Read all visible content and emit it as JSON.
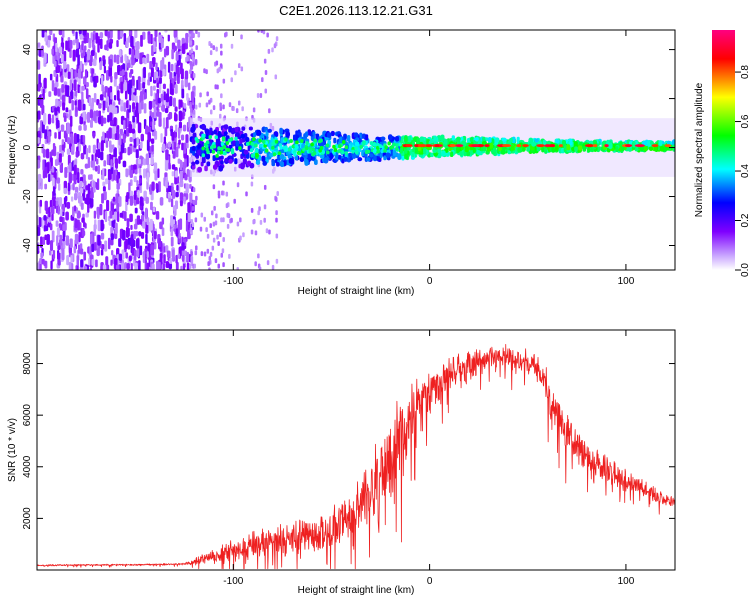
{
  "figure_title": "C2E1.2026.113.12.21.G31",
  "chart_data": [
    {
      "type": "heatmap",
      "title": "C2E1.2026.113.12.21.G31",
      "xlabel": "Height of straight line (km)",
      "ylabel": "Frequency (Hz)",
      "xlim": [
        -200,
        125
      ],
      "ylim": [
        -50,
        48
      ],
      "xticks": [
        -100,
        0,
        100
      ],
      "yticks": [
        -40,
        -20,
        0,
        20,
        40
      ],
      "xtick_labels": [
        "-100",
        "0",
        "100"
      ],
      "ytick_labels": [
        "-40",
        "-20",
        "0",
        "20",
        "40"
      ],
      "colorbar": {
        "label": "Normalized spectral amplitude",
        "range": [
          0,
          0.97
        ],
        "ticks": [
          0.0,
          0.2,
          0.4,
          0.6,
          0.8
        ],
        "tick_labels": [
          "0.0",
          "0.2",
          "0.4",
          "0.6",
          "0.8"
        ],
        "colors": [
          "#ffffff",
          "#7f00ff",
          "#0000ff",
          "#00ffff",
          "#00ff00",
          "#ffff00",
          "#ff0000",
          "#ff00ff"
        ]
      },
      "description_regions": [
        {
          "x_range": [
            -200,
            -122
          ],
          "f_range": [
            -50,
            48
          ],
          "amplitude": 0.1
        },
        {
          "x_range": [
            -122,
            -20
          ],
          "f_range": [
            -8,
            8
          ],
          "amplitude": 0.35
        },
        {
          "x_range": [
            -20,
            125
          ],
          "f_range": [
            -2,
            3
          ],
          "amplitude": 0.5
        }
      ]
    },
    {
      "type": "line",
      "title": "",
      "xlabel": "Height of straight line (km)",
      "ylabel": "SNR (10 * v/v)",
      "xlim": [
        -200,
        125
      ],
      "ylim": [
        0,
        9300
      ],
      "xticks": [
        -100,
        0,
        100
      ],
      "yticks": [
        2000,
        4000,
        6000,
        8000
      ],
      "xtick_labels": [
        "-100",
        "0",
        "100"
      ],
      "ytick_labels": [
        "2000",
        "4000",
        "6000",
        "8000"
      ],
      "color": "#ee2020",
      "series": [
        {
          "name": "SNR",
          "x": [
            -200,
            -180,
            -160,
            -140,
            -125,
            -115,
            -105,
            -100,
            -90,
            -80,
            -70,
            -60,
            -50,
            -40,
            -35,
            -30,
            -25,
            -20,
            -15,
            -10,
            -5,
            0,
            5,
            10,
            15,
            20,
            25,
            30,
            35,
            40,
            45,
            50,
            55,
            60,
            65,
            70,
            75,
            80,
            85,
            90,
            95,
            100,
            105,
            110,
            115,
            120,
            125
          ],
          "y": [
            180,
            190,
            200,
            210,
            230,
            420,
            650,
            800,
            950,
            1050,
            1200,
            1350,
            1600,
            2100,
            2600,
            3100,
            3700,
            4300,
            5000,
            5700,
            6400,
            6900,
            7200,
            7500,
            7700,
            7900,
            8100,
            8200,
            8250,
            8200,
            8150,
            8100,
            7900,
            7000,
            6200,
            5200,
            4700,
            4400,
            4100,
            3900,
            3700,
            3500,
            3300,
            3100,
            2900,
            2700,
            2600
          ],
          "noise": [
            30,
            30,
            30,
            30,
            40,
            200,
            350,
            450,
            550,
            600,
            650,
            700,
            800,
            1000,
            1200,
            1400,
            1500,
            1600,
            1500,
            1300,
            1100,
            900,
            800,
            700,
            600,
            600,
            550,
            500,
            500,
            500,
            500,
            500,
            500,
            700,
            800,
            800,
            700,
            600,
            550,
            500,
            450,
            400,
            350,
            350,
            300,
            300,
            300
          ]
        }
      ]
    }
  ]
}
